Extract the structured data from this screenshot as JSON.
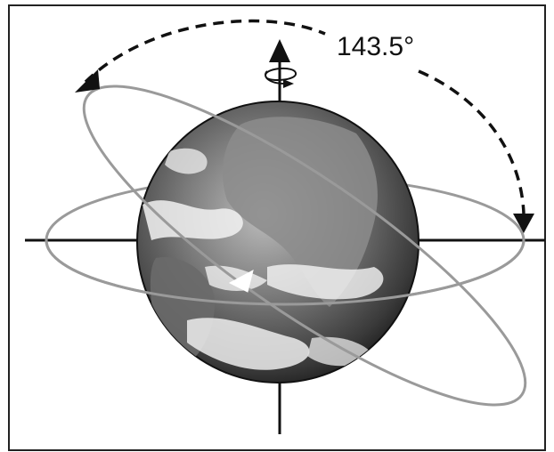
{
  "diagram": {
    "angle_label": "143.5°",
    "colors": {
      "frame": "#222222",
      "axes": "#111111",
      "orbit": "#9a9a9a",
      "dashed_arc": "#111111",
      "earth_dark": "#2a2a2a",
      "earth_light": "#cfcfcf",
      "orbit_arrow": "#ffffff"
    },
    "icons": {
      "rotation": "rotation-arrow-icon",
      "axis_arrow": "up-arrow-icon"
    }
  }
}
